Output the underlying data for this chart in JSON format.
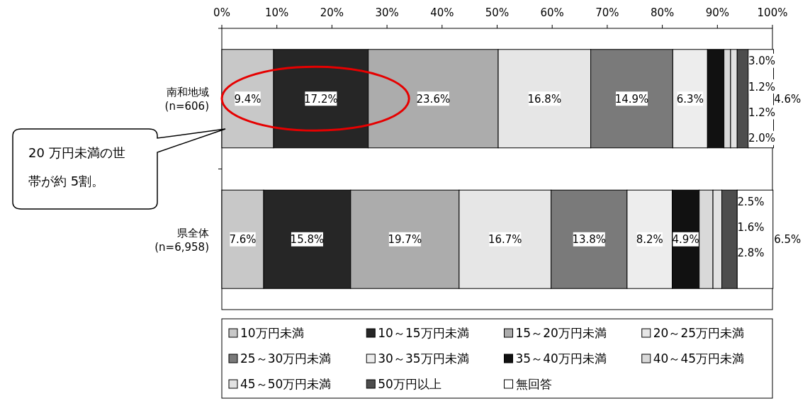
{
  "chart_data": {
    "type": "bar",
    "orientation": "horizontal",
    "stacked": true,
    "categories": [
      "南和地域\n(n=606)",
      "県全体\n(n=6,958)"
    ],
    "xlim": [
      0,
      100
    ],
    "xticks": [
      {
        "value": 0,
        "label": "0%"
      },
      {
        "value": 10,
        "label": "10%"
      },
      {
        "value": 20,
        "label": "20%"
      },
      {
        "value": 30,
        "label": "30%"
      },
      {
        "value": 40,
        "label": "40%"
      },
      {
        "value": 50,
        "label": "50%"
      },
      {
        "value": 60,
        "label": "60%"
      },
      {
        "value": 70,
        "label": "70%"
      },
      {
        "value": 80,
        "label": "80%"
      },
      {
        "value": 90,
        "label": "90%"
      },
      {
        "value": 100,
        "label": "100%"
      }
    ],
    "grid": false,
    "legend": "bottom",
    "series": [
      {
        "name": "10万円未満",
        "color": "#c8c8c8",
        "values": [
          9.4,
          7.6
        ],
        "value_labels": [
          "9.4%",
          "7.6%"
        ]
      },
      {
        "name": "10～15万円未満",
        "color": "#262626",
        "values": [
          17.2,
          15.8
        ],
        "value_labels": [
          "17.2%",
          "15.8%"
        ]
      },
      {
        "name": "15～20万円未満",
        "color": "#acacac",
        "values": [
          23.6,
          19.7
        ],
        "value_labels": [
          "23.6%",
          "19.7%"
        ]
      },
      {
        "name": "20～25万円未満",
        "color": "#e6e6e6",
        "values": [
          16.8,
          16.7
        ],
        "value_labels": [
          "16.8%",
          "16.7%"
        ]
      },
      {
        "name": "25～30万円未満",
        "color": "#7a7a7a",
        "values": [
          14.9,
          13.8
        ],
        "value_labels": [
          "14.9%",
          "13.8%"
        ]
      },
      {
        "name": "30～35万円未満",
        "color": "#ededed",
        "values": [
          6.3,
          8.2
        ],
        "value_labels": [
          "6.3%",
          "8.2%"
        ]
      },
      {
        "name": "35～40万円未満",
        "color": "#111111",
        "values": [
          3.0,
          4.9
        ],
        "value_labels": [
          "3.0%",
          "4.9%"
        ]
      },
      {
        "name": "40～45万円未満",
        "color": "#d9d9d9",
        "values": [
          1.2,
          2.5
        ],
        "value_labels": [
          "1.2%",
          "2.5%"
        ]
      },
      {
        "name": "45～50万円未満",
        "color": "#e2e2e2",
        "values": [
          1.2,
          1.6
        ],
        "value_labels": [
          "1.2%",
          "1.6%"
        ]
      },
      {
        "name": "50万円以上",
        "color": "#4d4d4d",
        "values": [
          2.0,
          2.8
        ],
        "value_labels": [
          "2.0%",
          "2.8%"
        ]
      },
      {
        "name": "無回答",
        "color": "#ffffff",
        "values": [
          4.6,
          6.5
        ],
        "value_labels": [
          "4.6%",
          "6.5%"
        ]
      }
    ],
    "annotations": [
      "20 万円未満の世帯が約 5割。"
    ]
  }
}
